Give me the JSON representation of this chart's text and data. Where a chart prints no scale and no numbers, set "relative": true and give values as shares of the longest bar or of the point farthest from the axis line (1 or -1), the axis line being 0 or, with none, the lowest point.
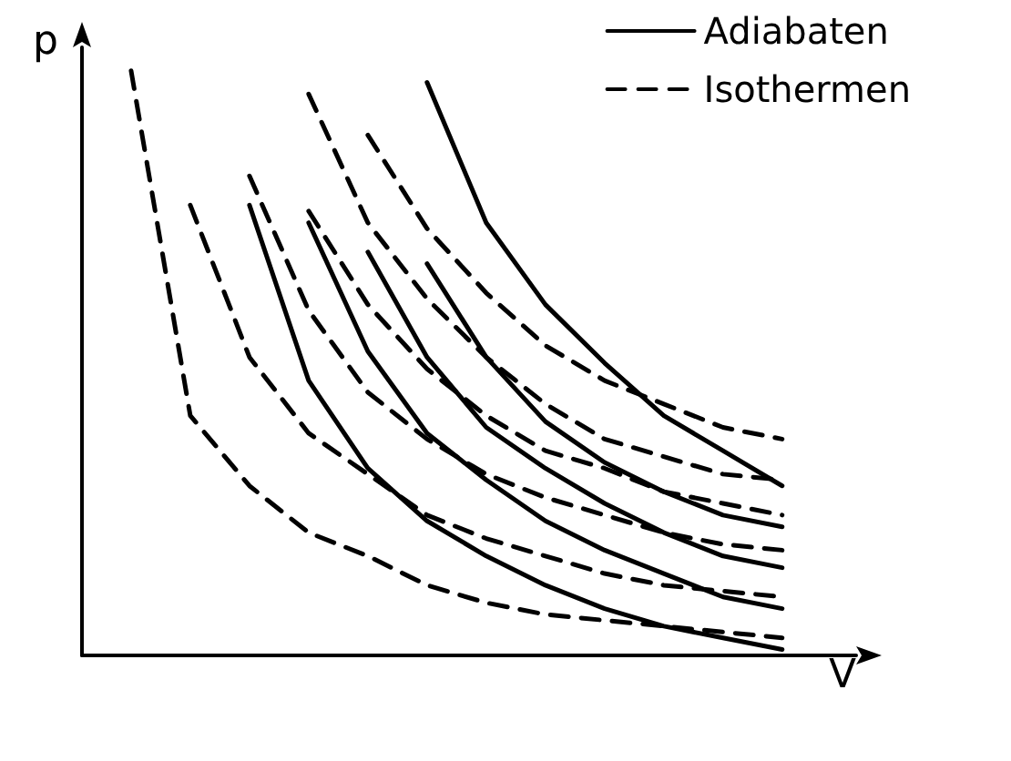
{
  "chart_data": {
    "type": "line",
    "relative": true,
    "xlabel": "V",
    "ylabel": "p",
    "legend": "top right",
    "grid": false,
    "marker": "none",
    "categories": [
      null,
      null,
      null,
      null,
      null,
      null,
      null,
      null,
      null,
      null,
      null,
      null
    ],
    "series": [
      {
        "name": "Adiabaten",
        "color": "#000000",
        "line_style": "solid",
        "values": [
          null,
          null,
          0.77,
          0.47,
          0.32,
          0.23,
          0.17,
          0.12,
          0.08,
          0.05,
          0.03,
          0.01
        ]
      },
      {
        "color": "#000000",
        "line_style": "solid",
        "values": [
          null,
          null,
          null,
          0.74,
          0.52,
          0.38,
          0.3,
          0.23,
          0.18,
          0.14,
          0.1,
          0.08
        ]
      },
      {
        "color": "#000000",
        "line_style": "solid",
        "values": [
          null,
          null,
          null,
          null,
          0.69,
          0.51,
          0.39,
          0.32,
          0.26,
          0.21,
          0.17,
          0.15
        ]
      },
      {
        "color": "#000000",
        "line_style": "solid",
        "values": [
          null,
          null,
          null,
          null,
          null,
          0.67,
          0.51,
          0.4,
          0.33,
          0.28,
          0.24,
          0.22
        ]
      },
      {
        "color": "#000000",
        "line_style": "solid",
        "values": [
          null,
          null,
          null,
          null,
          null,
          0.98,
          0.74,
          0.6,
          0.5,
          0.41,
          0.35,
          0.29
        ]
      },
      {
        "name": "Isothermen",
        "color": "#000000",
        "line_style": "dashed",
        "values": [
          1.0,
          0.41,
          0.29,
          0.21,
          0.17,
          0.12,
          0.09,
          0.07,
          0.06,
          0.05,
          0.04,
          0.03
        ]
      },
      {
        "color": "#000000",
        "line_style": "dashed",
        "values": [
          null,
          0.77,
          0.51,
          0.38,
          0.31,
          0.24,
          0.2,
          0.17,
          0.14,
          0.12,
          0.11,
          0.1
        ]
      },
      {
        "color": "#000000",
        "line_style": "dashed",
        "values": [
          null,
          null,
          0.82,
          0.59,
          0.45,
          0.37,
          0.31,
          0.27,
          0.24,
          0.21,
          0.19,
          0.18
        ]
      },
      {
        "color": "#000000",
        "line_style": "dashed",
        "values": [
          null,
          null,
          null,
          0.76,
          0.6,
          0.49,
          0.41,
          0.35,
          0.32,
          0.28,
          0.26,
          0.24
        ]
      },
      {
        "color": "#000000",
        "line_style": "dashed",
        "values": [
          null,
          null,
          null,
          0.96,
          0.74,
          0.61,
          0.51,
          0.43,
          0.37,
          0.34,
          0.31,
          0.3
        ]
      },
      {
        "color": "#000000",
        "line_style": "dashed",
        "values": [
          null,
          null,
          null,
          null,
          0.89,
          0.73,
          0.62,
          0.53,
          0.47,
          0.43,
          0.39,
          0.37
        ]
      }
    ]
  }
}
